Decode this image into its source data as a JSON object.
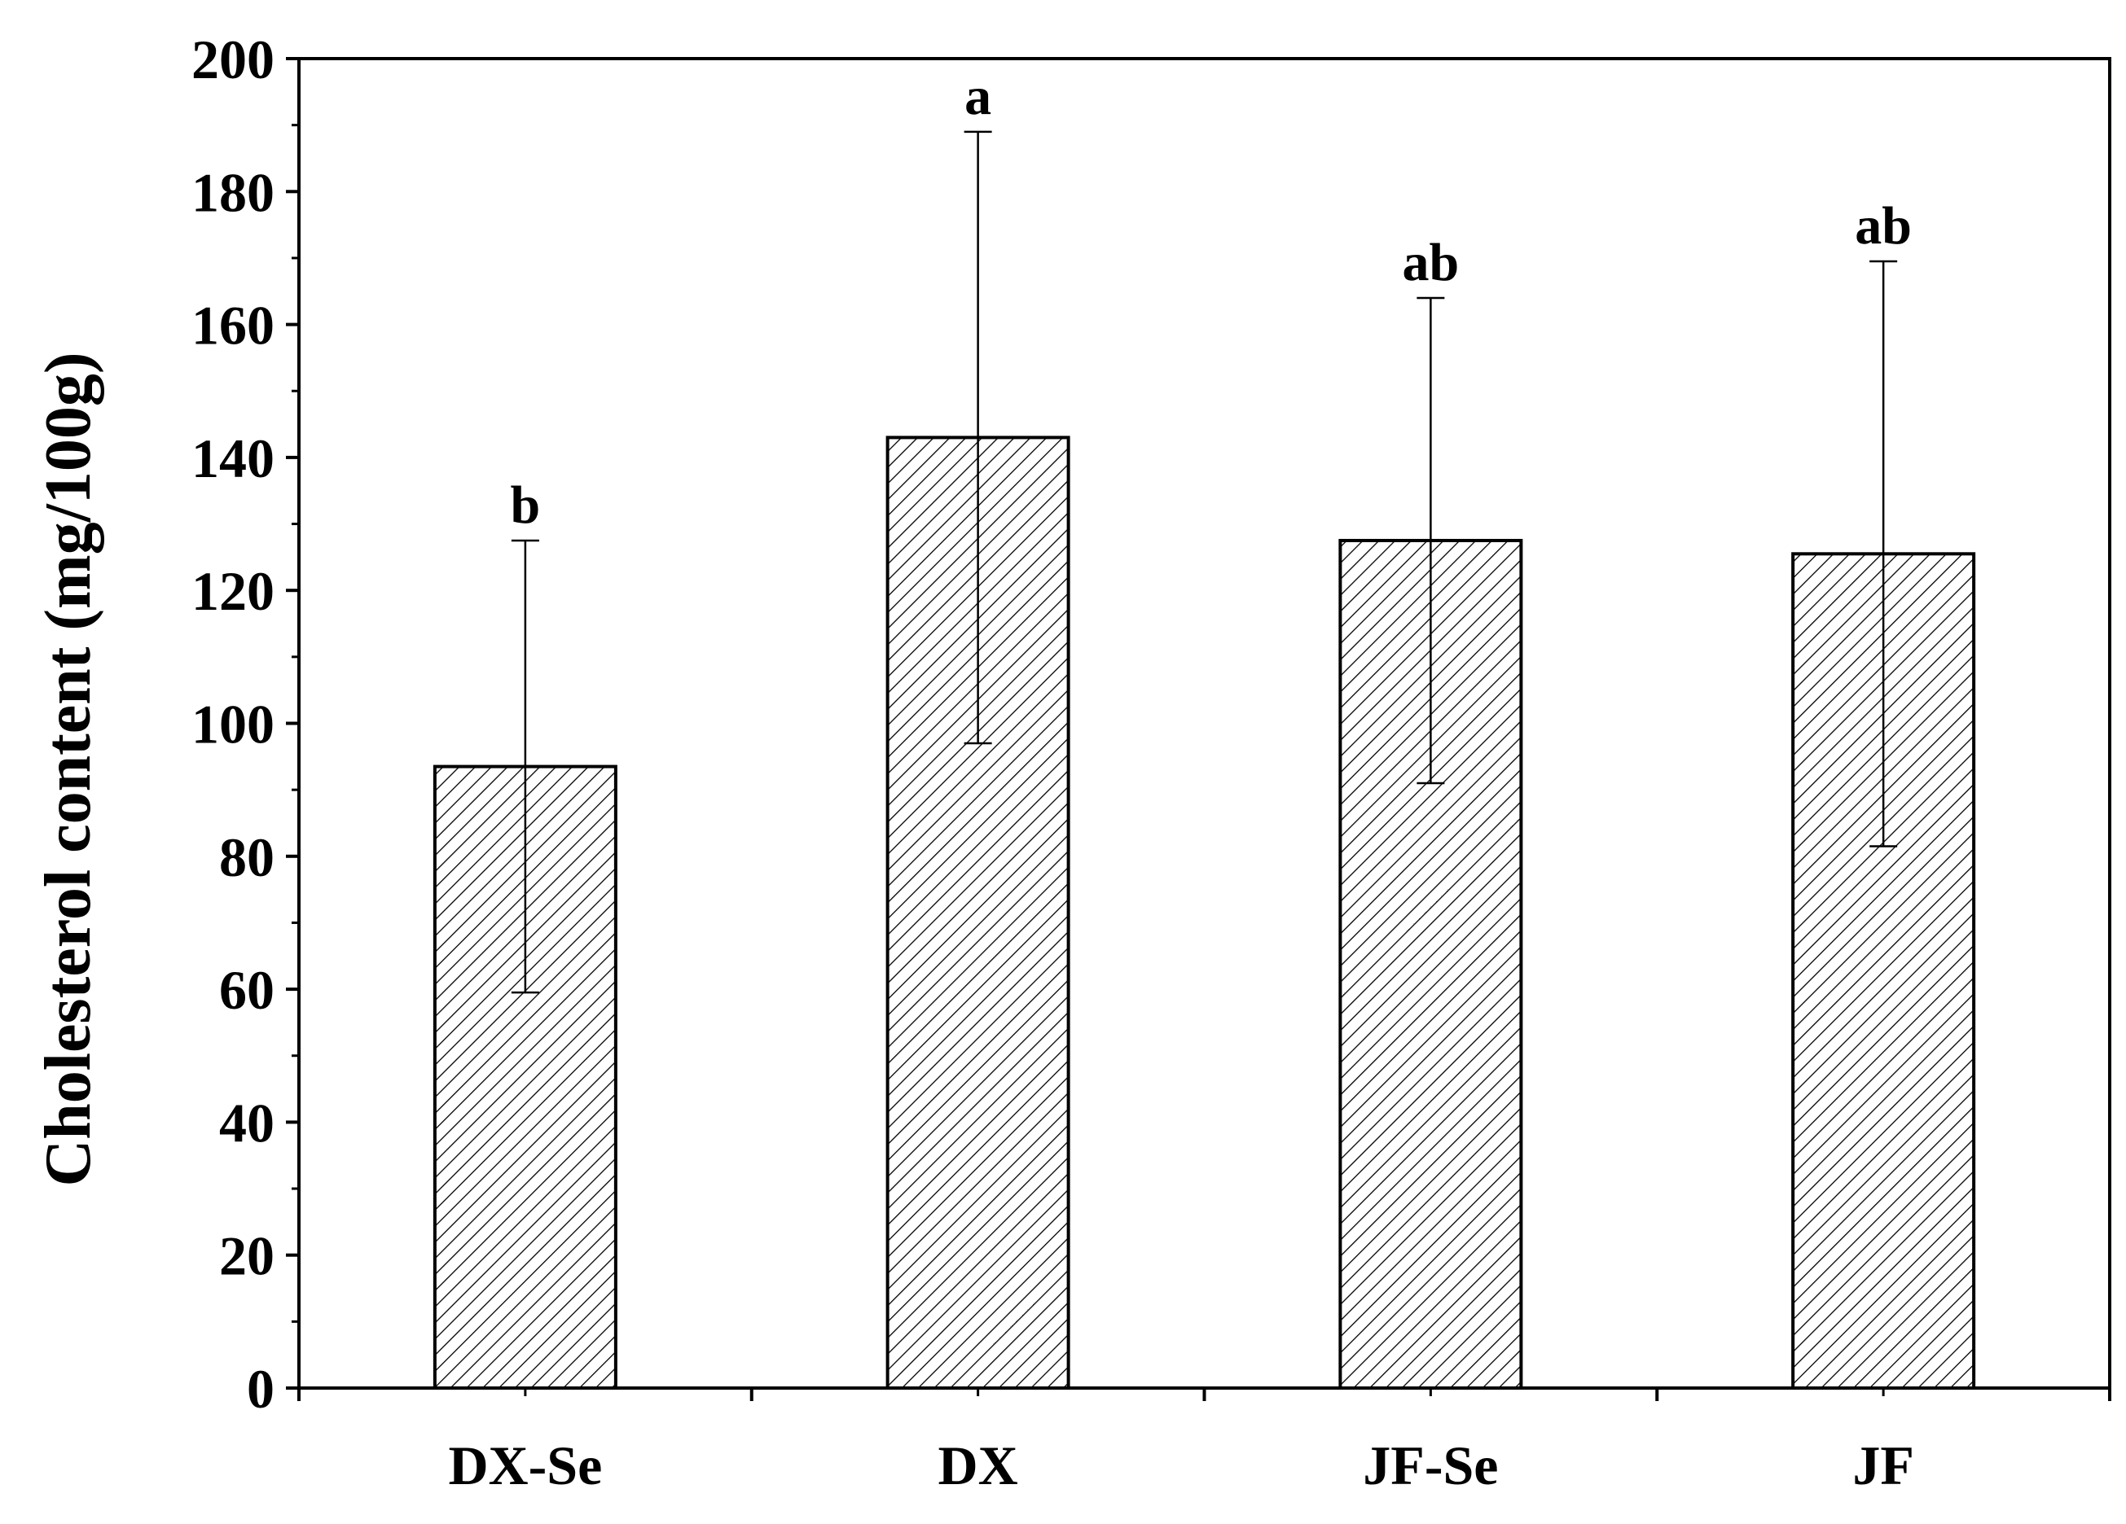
{
  "chart_data": {
    "type": "bar",
    "categories": [
      "DX-Se",
      "DX",
      "JF-Se",
      "JF"
    ],
    "values": [
      93.5,
      143,
      127.5,
      125.5
    ],
    "errors": [
      34,
      46,
      36.5,
      44
    ],
    "significance": [
      "b",
      "a",
      "ab",
      "ab"
    ],
    "xlabel": "",
    "ylabel": "Cholesterol content (mg/100g)",
    "ylim": [
      0,
      200
    ],
    "yticks": [
      "0",
      "20",
      "40",
      "60",
      "80",
      "100",
      "120",
      "140",
      "160",
      "180",
      "200"
    ],
    "grid": false,
    "legend": "none",
    "bar_fill": "hatched",
    "colors": {
      "bar_edge": "#000000",
      "hatch": "#000000",
      "background": "#ffffff"
    }
  }
}
